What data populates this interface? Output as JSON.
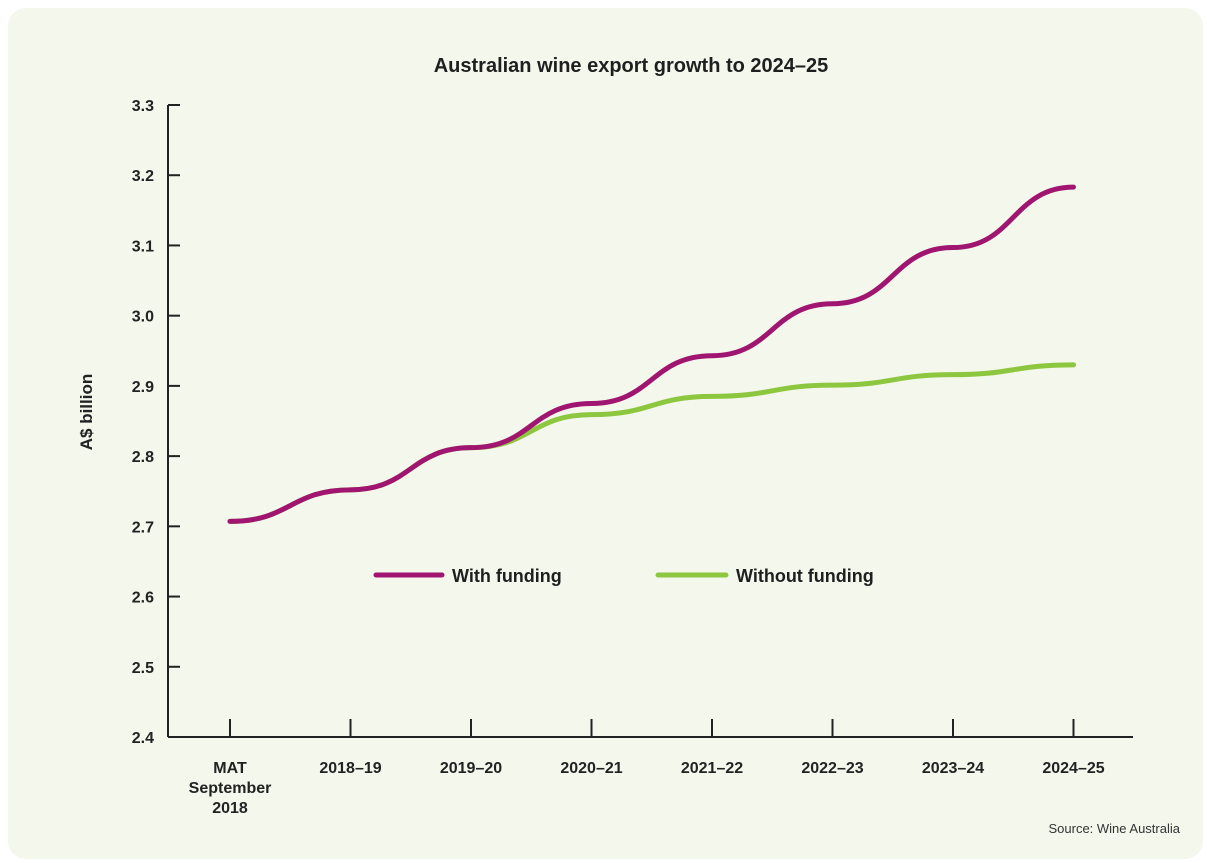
{
  "chart_data": {
    "type": "line",
    "title": "Australian wine export growth to 2024–25",
    "ylabel": "A$ billion",
    "xlabel": "",
    "categories": [
      [
        "MAT",
        "September",
        "2018"
      ],
      [
        "2018–19"
      ],
      [
        "2019–20"
      ],
      [
        "2020–21"
      ],
      [
        "2021–22"
      ],
      [
        "2022–23"
      ],
      [
        "2023–24"
      ],
      [
        "2024–25"
      ]
    ],
    "ylim": [
      2.4,
      3.3
    ],
    "yticks": [
      "2.4",
      "2.5",
      "2.6",
      "2.7",
      "2.8",
      "2.9",
      "3.0",
      "3.1",
      "3.2",
      "3.3"
    ],
    "series": [
      {
        "name": "With funding",
        "color": "#a0156f",
        "values": [
          2.707,
          2.752,
          2.812,
          2.875,
          2.943,
          3.017,
          3.097,
          3.183
        ]
      },
      {
        "name": "Without funding",
        "color": "#8dc63f",
        "values": [
          2.707,
          2.752,
          2.812,
          2.859,
          2.885,
          2.901,
          2.916,
          2.93
        ]
      }
    ],
    "legend_position": "center-left",
    "grid": false,
    "source": "Source: Wine Australia"
  }
}
